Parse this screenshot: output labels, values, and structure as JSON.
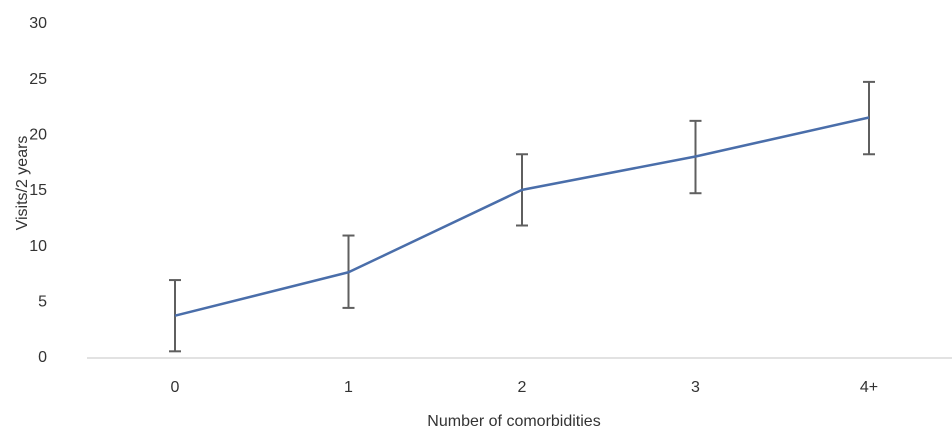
{
  "chart_data": {
    "type": "line",
    "title": "",
    "xlabel": "Number of comorbidities",
    "ylabel": "Visits/2 years",
    "categories": [
      "0",
      "1",
      "2",
      "3",
      "4+"
    ],
    "series": [
      {
        "values": [
          3.8,
          7.7,
          15.1,
          18.1,
          21.6
        ],
        "error_low": [
          0.6,
          4.5,
          11.9,
          14.8,
          18.3
        ],
        "error_high": [
          7.0,
          11.0,
          18.3,
          21.3,
          24.8
        ]
      }
    ],
    "ylim": [
      0,
      30
    ],
    "yticks": [
      "0",
      "5",
      "10",
      "15",
      "20",
      "25",
      "30"
    ],
    "grid": false,
    "legend": "none"
  },
  "colors": {
    "line": "#4a6eaa",
    "error_bars": "#5f5f5f",
    "axis": "#d9d9d9",
    "text": "#333333"
  }
}
